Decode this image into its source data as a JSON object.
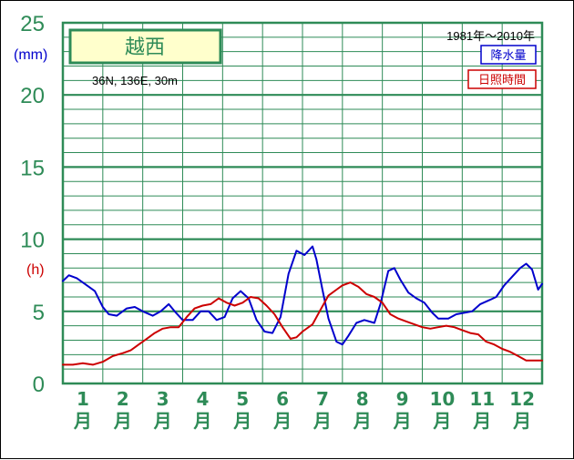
{
  "chart_data": {
    "type": "line",
    "title": "越西",
    "location": "36N, 136E, 30m",
    "period": "1981年〜2010年",
    "y_unit_precip": "(mm)",
    "y_unit_sun": "(h)",
    "ylim": [
      0,
      25
    ],
    "yticks": [
      {
        "value": 0,
        "label": "0"
      },
      {
        "value": 5,
        "label": "5"
      },
      {
        "value": 10,
        "label": "10"
      },
      {
        "value": 15,
        "label": "15"
      },
      {
        "value": 20,
        "label": "20"
      },
      {
        "value": 25,
        "label": "25"
      }
    ],
    "xlim": [
      0.5,
      12.5
    ],
    "months": [
      {
        "num": "1",
        "kanji": "月"
      },
      {
        "num": "2",
        "kanji": "月"
      },
      {
        "num": "3",
        "kanji": "月"
      },
      {
        "num": "4",
        "kanji": "月"
      },
      {
        "num": "5",
        "kanji": "月"
      },
      {
        "num": "6",
        "kanji": "月"
      },
      {
        "num": "7",
        "kanji": "月"
      },
      {
        "num": "8",
        "kanji": "月"
      },
      {
        "num": "9",
        "kanji": "月"
      },
      {
        "num": "10",
        "kanji": "月"
      },
      {
        "num": "11",
        "kanji": "月"
      },
      {
        "num": "12",
        "kanji": "月"
      }
    ],
    "grid": true,
    "series": [
      {
        "name": "降水量",
        "color": "#0000cc",
        "points": [
          [
            0.5,
            7.1
          ],
          [
            0.65,
            7.5
          ],
          [
            0.85,
            7.3
          ],
          [
            1.05,
            6.9
          ],
          [
            1.3,
            6.4
          ],
          [
            1.5,
            5.3
          ],
          [
            1.65,
            4.8
          ],
          [
            1.85,
            4.7
          ],
          [
            2.1,
            5.2
          ],
          [
            2.3,
            5.3
          ],
          [
            2.5,
            5.0
          ],
          [
            2.75,
            4.7
          ],
          [
            2.95,
            5.0
          ],
          [
            3.15,
            5.5
          ],
          [
            3.3,
            5.0
          ],
          [
            3.5,
            4.4
          ],
          [
            3.75,
            4.4
          ],
          [
            3.95,
            5.0
          ],
          [
            4.15,
            5.0
          ],
          [
            4.35,
            4.4
          ],
          [
            4.55,
            4.6
          ],
          [
            4.75,
            5.9
          ],
          [
            4.95,
            6.4
          ],
          [
            5.15,
            5.9
          ],
          [
            5.35,
            4.4
          ],
          [
            5.55,
            3.6
          ],
          [
            5.75,
            3.5
          ],
          [
            5.95,
            4.6
          ],
          [
            6.15,
            7.6
          ],
          [
            6.35,
            9.2
          ],
          [
            6.55,
            8.9
          ],
          [
            6.75,
            9.5
          ],
          [
            6.85,
            8.6
          ],
          [
            7.0,
            6.5
          ],
          [
            7.15,
            4.5
          ],
          [
            7.35,
            2.9
          ],
          [
            7.5,
            2.7
          ],
          [
            7.65,
            3.3
          ],
          [
            7.85,
            4.2
          ],
          [
            8.05,
            4.4
          ],
          [
            8.3,
            4.2
          ],
          [
            8.45,
            5.5
          ],
          [
            8.65,
            7.8
          ],
          [
            8.8,
            8.0
          ],
          [
            8.95,
            7.2
          ],
          [
            9.15,
            6.3
          ],
          [
            9.35,
            5.9
          ],
          [
            9.55,
            5.6
          ],
          [
            9.75,
            4.9
          ],
          [
            9.9,
            4.5
          ],
          [
            10.15,
            4.5
          ],
          [
            10.35,
            4.8
          ],
          [
            10.55,
            4.9
          ],
          [
            10.75,
            5.0
          ],
          [
            10.95,
            5.5
          ],
          [
            11.2,
            5.8
          ],
          [
            11.35,
            6.0
          ],
          [
            11.55,
            6.8
          ],
          [
            11.75,
            7.4
          ],
          [
            11.95,
            8.0
          ],
          [
            12.1,
            8.3
          ],
          [
            12.25,
            7.9
          ],
          [
            12.4,
            6.5
          ],
          [
            12.5,
            6.9
          ]
        ]
      },
      {
        "name": "日照時間",
        "color": "#cc0000",
        "points": [
          [
            0.5,
            1.3
          ],
          [
            0.75,
            1.3
          ],
          [
            1.0,
            1.4
          ],
          [
            1.25,
            1.3
          ],
          [
            1.5,
            1.5
          ],
          [
            1.75,
            1.9
          ],
          [
            2.0,
            2.1
          ],
          [
            2.2,
            2.3
          ],
          [
            2.4,
            2.7
          ],
          [
            2.6,
            3.1
          ],
          [
            2.8,
            3.5
          ],
          [
            3.0,
            3.8
          ],
          [
            3.2,
            3.9
          ],
          [
            3.4,
            3.9
          ],
          [
            3.6,
            4.6
          ],
          [
            3.8,
            5.2
          ],
          [
            4.0,
            5.4
          ],
          [
            4.2,
            5.5
          ],
          [
            4.4,
            5.9
          ],
          [
            4.6,
            5.6
          ],
          [
            4.8,
            5.4
          ],
          [
            5.0,
            5.6
          ],
          [
            5.2,
            6.0
          ],
          [
            5.4,
            5.9
          ],
          [
            5.6,
            5.4
          ],
          [
            5.8,
            4.8
          ],
          [
            6.0,
            3.9
          ],
          [
            6.2,
            3.1
          ],
          [
            6.35,
            3.2
          ],
          [
            6.5,
            3.6
          ],
          [
            6.75,
            4.1
          ],
          [
            6.95,
            5.1
          ],
          [
            7.15,
            6.1
          ],
          [
            7.35,
            6.5
          ],
          [
            7.5,
            6.8
          ],
          [
            7.7,
            7.0
          ],
          [
            7.9,
            6.7
          ],
          [
            8.1,
            6.2
          ],
          [
            8.3,
            6.0
          ],
          [
            8.5,
            5.6
          ],
          [
            8.7,
            4.8
          ],
          [
            8.9,
            4.5
          ],
          [
            9.1,
            4.3
          ],
          [
            9.3,
            4.1
          ],
          [
            9.5,
            3.9
          ],
          [
            9.7,
            3.8
          ],
          [
            9.9,
            3.9
          ],
          [
            10.1,
            4.0
          ],
          [
            10.3,
            3.9
          ],
          [
            10.5,
            3.7
          ],
          [
            10.7,
            3.5
          ],
          [
            10.9,
            3.4
          ],
          [
            11.1,
            2.9
          ],
          [
            11.3,
            2.7
          ],
          [
            11.5,
            2.4
          ],
          [
            11.7,
            2.2
          ],
          [
            11.9,
            1.9
          ],
          [
            12.1,
            1.6
          ],
          [
            12.3,
            1.6
          ],
          [
            12.5,
            1.6
          ]
        ]
      }
    ],
    "legend_placement": "top-right"
  }
}
